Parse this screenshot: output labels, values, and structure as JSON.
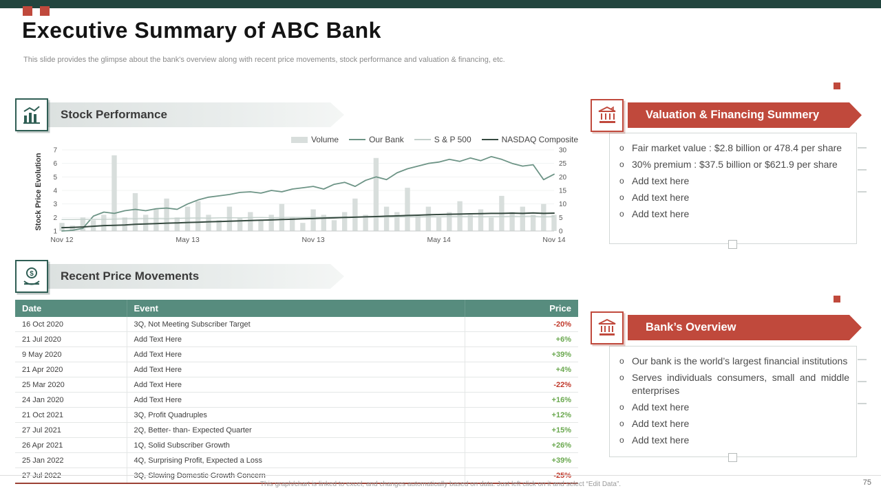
{
  "bullet_char": "o",
  "accent": {
    "red": "#c0493c",
    "dark_teal": "#22453e",
    "table_teal": "#578c7e",
    "green": "#6aa84f"
  },
  "header": {
    "title": "Executive Summary of ABC Bank",
    "subtitle": "This slide provides the glimpse about the bank's overview along with recent price movements, stock performance and valuation & financing, etc."
  },
  "sections": {
    "stock_performance": {
      "title": "Stock Performance"
    },
    "recent_price_movements": {
      "title": "Recent Price Movements"
    },
    "valuation": {
      "title": "Valuation & Financing Summery",
      "bullets": [
        "Fair market value : $2.8 billion or 478.4 per share",
        "30% premium : $37.5 billion or $621.9 per share",
        "Add text here",
        "Add text here",
        "Add text here"
      ]
    },
    "bank_overview": {
      "title": "Bank’s Overview",
      "bullets": [
        "Our bank is the world’s largest financial institutions",
        "Serves individuals consumers, small and middle enterprises",
        "Add text here",
        "Add text here",
        "Add text here"
      ]
    }
  },
  "chart_data": {
    "type": "combo",
    "title": "",
    "ylabel_left": "Stock Price Evolution",
    "left_axis": {
      "min": 1,
      "max": 7,
      "ticks": [
        1,
        2,
        3,
        4,
        5,
        6,
        7
      ]
    },
    "right_axis": {
      "min": 0,
      "max": 30,
      "ticks": [
        0,
        5,
        10,
        15,
        20,
        25,
        30
      ]
    },
    "x_labels": [
      "Nov 12",
      "May 13",
      "Nov 13",
      "May 14",
      "Nov 14"
    ],
    "x_label_indices": [
      0,
      12,
      24,
      36,
      47
    ],
    "legend": [
      {
        "name": "Volume",
        "color": "#d8dedc",
        "kind": "bar"
      },
      {
        "name": "Our Bank",
        "color": "#6d9486",
        "kind": "line"
      },
      {
        "name": "S & P 500",
        "color": "#c3d0cb",
        "kind": "line"
      },
      {
        "name": "NASDAQ Composite",
        "color": "#35493f",
        "kind": "line"
      }
    ],
    "volume": [
      3,
      2,
      5,
      4,
      6,
      28,
      5,
      14,
      6,
      8,
      12,
      5,
      9,
      11,
      6,
      4,
      9,
      5,
      7,
      4,
      6,
      10,
      5,
      3,
      8,
      6,
      4,
      7,
      12,
      6,
      27,
      9,
      7,
      16,
      6,
      9,
      5,
      7,
      11,
      6,
      8,
      5,
      13,
      7,
      9,
      6,
      10,
      6
    ],
    "series": [
      {
        "name": "Our Bank",
        "axis": "left",
        "color": "#6d9486",
        "width": 1.8,
        "values": [
          1.0,
          1.05,
          1.2,
          2.1,
          2.4,
          2.3,
          2.5,
          2.6,
          2.5,
          2.65,
          2.7,
          2.6,
          3.0,
          3.3,
          3.5,
          3.6,
          3.7,
          3.85,
          3.9,
          3.8,
          4.0,
          3.9,
          4.1,
          4.2,
          4.3,
          4.1,
          4.45,
          4.6,
          4.3,
          4.75,
          5.0,
          4.8,
          5.3,
          5.6,
          5.8,
          6.0,
          6.1,
          6.3,
          6.15,
          6.4,
          6.2,
          6.5,
          6.3,
          6.0,
          5.8,
          5.9,
          4.8,
          5.2
        ]
      },
      {
        "name": "S & P 500",
        "axis": "left",
        "color": "#c3d0cb",
        "width": 1.4,
        "values": [
          1.85,
          1.85,
          1.86,
          1.87,
          1.86,
          1.88,
          1.9,
          1.9,
          1.91,
          1.92,
          1.9,
          1.93,
          1.95,
          1.96,
          1.95,
          1.97,
          1.98,
          1.97,
          1.99,
          2.0,
          1.98,
          2.0,
          2.01,
          2.0,
          2.02,
          2.01,
          2.03,
          2.02,
          2.04,
          2.03,
          2.05,
          2.04,
          2.05,
          2.06,
          2.05,
          2.07,
          2.06,
          2.08,
          2.07,
          2.08,
          2.06,
          2.08,
          2.07,
          2.09,
          2.08,
          2.1,
          2.05,
          2.08
        ]
      },
      {
        "name": "NASDAQ Composite",
        "axis": "left",
        "color": "#35493f",
        "width": 2,
        "values": [
          1.25,
          1.27,
          1.3,
          1.35,
          1.4,
          1.42,
          1.45,
          1.5,
          1.52,
          1.55,
          1.58,
          1.6,
          1.63,
          1.65,
          1.68,
          1.7,
          1.72,
          1.75,
          1.78,
          1.8,
          1.82,
          1.85,
          1.87,
          1.9,
          1.92,
          1.95,
          1.97,
          2.0,
          2.02,
          2.05,
          2.07,
          2.1,
          2.12,
          2.15,
          2.17,
          2.2,
          2.22,
          2.24,
          2.25,
          2.27,
          2.28,
          2.3,
          2.3,
          2.32,
          2.3,
          2.33,
          2.3,
          2.32
        ]
      }
    ]
  },
  "price_table": {
    "headers": [
      "Date",
      "Event",
      "Price"
    ],
    "rows": [
      {
        "date": "16 Oct 2020",
        "event": "3Q, Not Meeting Subscriber Target",
        "price": "-20%",
        "direction": "down"
      },
      {
        "date": "21 Jul 2020",
        "event": "Add Text Here",
        "price": "+6%",
        "direction": "up"
      },
      {
        "date": "9 May 2020",
        "event": "Add Text Here",
        "price": "+39%",
        "direction": "up"
      },
      {
        "date": "21 Apr 2020",
        "event": "Add Text Here",
        "price": "+4%",
        "direction": "up"
      },
      {
        "date": "25 Mar 2020",
        "event": "Add Text Here",
        "price": "-22%",
        "direction": "down"
      },
      {
        "date": "24 Jan 2020",
        "event": "Add Text Here",
        "price": "+16%",
        "direction": "up"
      },
      {
        "date": "21 Oct 2021",
        "event": "3Q, Profit Quadruples",
        "price": "+12%",
        "direction": "up"
      },
      {
        "date": "27 Jul 2021",
        "event": "2Q, Better- than- Expected Quarter",
        "price": "+15%",
        "direction": "up"
      },
      {
        "date": "26 Apr 2021",
        "event": "1Q, Solid Subscriber Growth",
        "price": "+26%",
        "direction": "up"
      },
      {
        "date": "25 Jan 2022",
        "event": "4Q, Surprising Profit, Expected a Loss",
        "price": "+39%",
        "direction": "up"
      },
      {
        "date": "27 Jul 2022",
        "event": "3Q, Slowing Domestic Growth Concern",
        "price": "-25%",
        "direction": "down"
      }
    ]
  },
  "footer": {
    "note": "This graph/chart is linked to excel, and changes automatically based on data. Just left click on it and select “Edit Data”.",
    "page_number": "75"
  }
}
